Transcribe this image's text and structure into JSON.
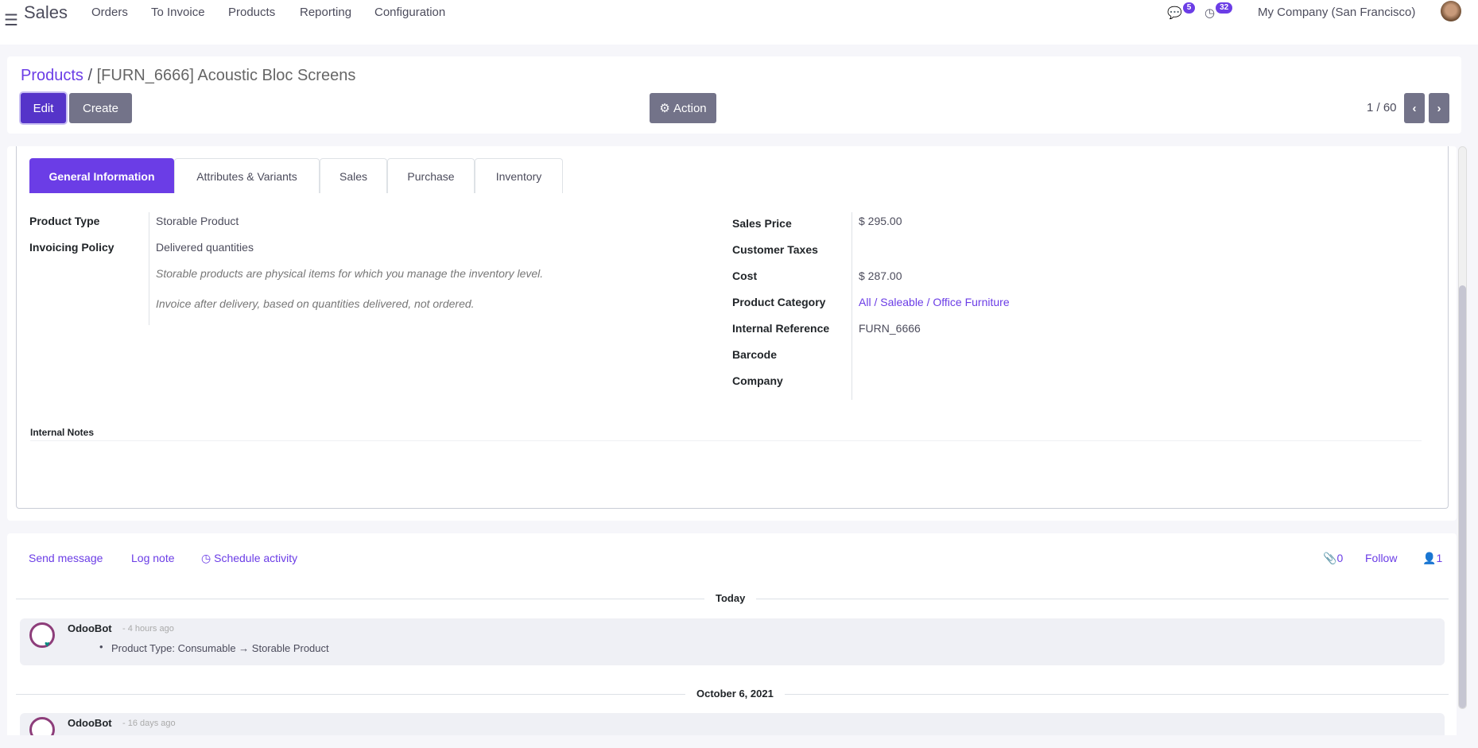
{
  "navbar": {
    "app": "Sales",
    "menu": [
      "Orders",
      "To Invoice",
      "Products",
      "Reporting",
      "Configuration"
    ],
    "messages_count": "5",
    "activities_count": "32",
    "company": "My Company (San Francisco)"
  },
  "control_panel": {
    "breadcrumb_parent": "Products",
    "breadcrumb_separator": "/",
    "breadcrumb_current": "[FURN_6666] Acoustic Bloc Screens",
    "edit": "Edit",
    "create": "Create",
    "action": "Action",
    "pager": "1 / 60"
  },
  "tabs": [
    "General Information",
    "Attributes & Variants",
    "Sales",
    "Purchase",
    "Inventory"
  ],
  "left_fields": [
    {
      "label": "Product Type",
      "value": "Storable Product"
    },
    {
      "label": "Invoicing Policy",
      "value": "Delivered quantities"
    }
  ],
  "help": [
    "Storable products are physical items for which you manage the inventory level.",
    "Invoice after delivery, based on quantities delivered, not ordered."
  ],
  "right_fields": [
    {
      "label": "Sales Price",
      "value": "$ 295.00"
    },
    {
      "label": "Customer Taxes",
      "value": ""
    },
    {
      "label": "Cost",
      "value": "$ 287.00"
    },
    {
      "label": "Product Category",
      "value": "All / Saleable / Office Furniture"
    },
    {
      "label": "Internal Reference",
      "value": "FURN_6666"
    },
    {
      "label": "Barcode",
      "value": ""
    },
    {
      "label": "Company",
      "value": ""
    }
  ],
  "internal_notes": "Internal Notes",
  "chatter": {
    "send_message": "Send message",
    "log_note": "Log note",
    "schedule_activity": "Schedule activity",
    "attachments": "0",
    "follow": "Follow",
    "followers": "1",
    "groups": [
      {
        "date": "Today",
        "author": "OdooBot",
        "time": "- 4 hours ago",
        "body": "Product Type: Consumable → Storable Product"
      },
      {
        "date": "October 6, 2021",
        "author": "OdooBot",
        "time": "- 16 days ago"
      }
    ]
  },
  "colors": {
    "primary": "#6b3de6",
    "secondary": "#737389"
  }
}
